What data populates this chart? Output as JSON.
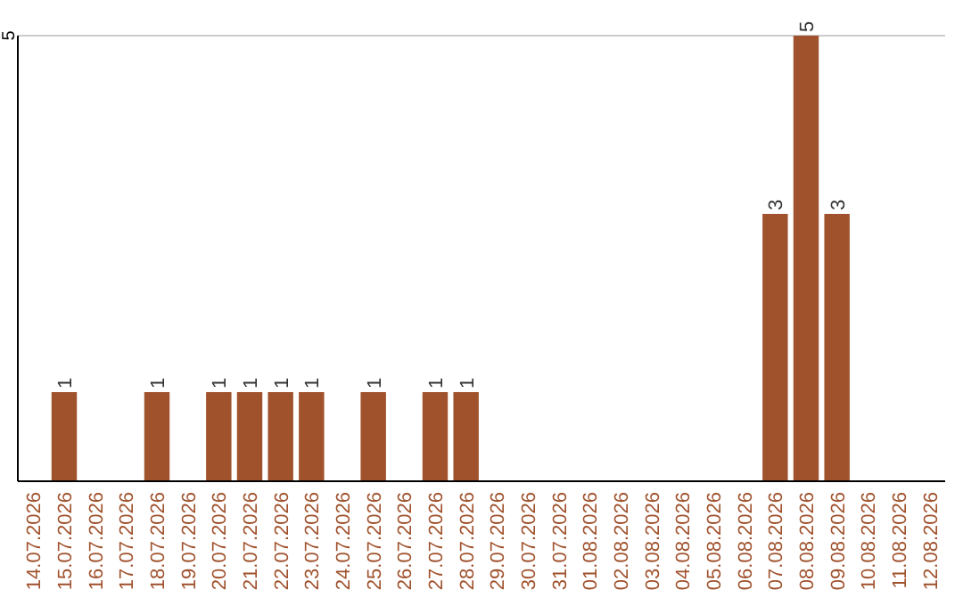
{
  "chart_data": {
    "type": "bar",
    "categories": [
      "14.07.2026",
      "15.07.2026",
      "16.07.2026",
      "17.07.2026",
      "18.07.2026",
      "19.07.2026",
      "20.07.2026",
      "21.07.2026",
      "22.07.2026",
      "23.07.2026",
      "24.07.2026",
      "25.07.2026",
      "26.07.2026",
      "27.07.2026",
      "28.07.2026",
      "29.07.2026",
      "30.07.2026",
      "31.07.2026",
      "01.08.2026",
      "02.08.2026",
      "03.08.2026",
      "04.08.2026",
      "05.08.2026",
      "06.08.2026",
      "07.08.2026",
      "08.08.2026",
      "09.08.2026",
      "10.08.2026",
      "11.08.2026",
      "12.08.2026"
    ],
    "values": [
      0,
      1,
      0,
      0,
      1,
      0,
      1,
      1,
      1,
      1,
      0,
      1,
      0,
      1,
      1,
      0,
      0,
      0,
      0,
      0,
      0,
      0,
      0,
      0,
      3,
      5,
      3,
      0,
      0,
      0
    ],
    "value_labels": [
      null,
      "1",
      null,
      null,
      "1",
      null,
      "1",
      "1",
      "1",
      "1",
      null,
      "1",
      null,
      "1",
      "1",
      null,
      null,
      null,
      null,
      null,
      null,
      null,
      null,
      null,
      "3",
      "5",
      "3",
      null,
      null,
      null
    ],
    "color": "#a0522d",
    "ylim": [
      0,
      5
    ],
    "yticks": [
      5
    ],
    "ref_lines": [
      {
        "axis": "y",
        "value": 5,
        "color": "#cccccc"
      }
    ]
  }
}
